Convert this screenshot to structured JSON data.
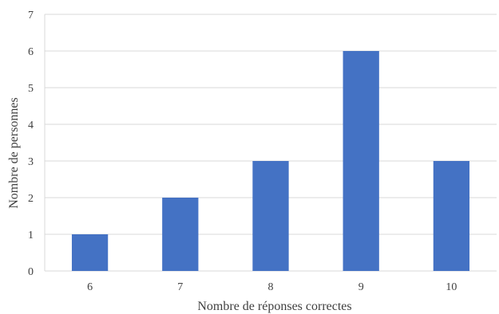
{
  "chart_data": {
    "type": "bar",
    "categories": [
      "6",
      "7",
      "8",
      "9",
      "10"
    ],
    "values": [
      1,
      2,
      3,
      6,
      3
    ],
    "xlabel": "Nombre de  réponses correctes",
    "ylabel": "Nombre de personnes",
    "ylim": [
      0,
      7
    ],
    "yticks": [
      "0",
      "1",
      "2",
      "3",
      "4",
      "5",
      "6",
      "7"
    ],
    "grid": true,
    "bar_color": "#4472C4",
    "grid_color": "#d9d9d9"
  }
}
